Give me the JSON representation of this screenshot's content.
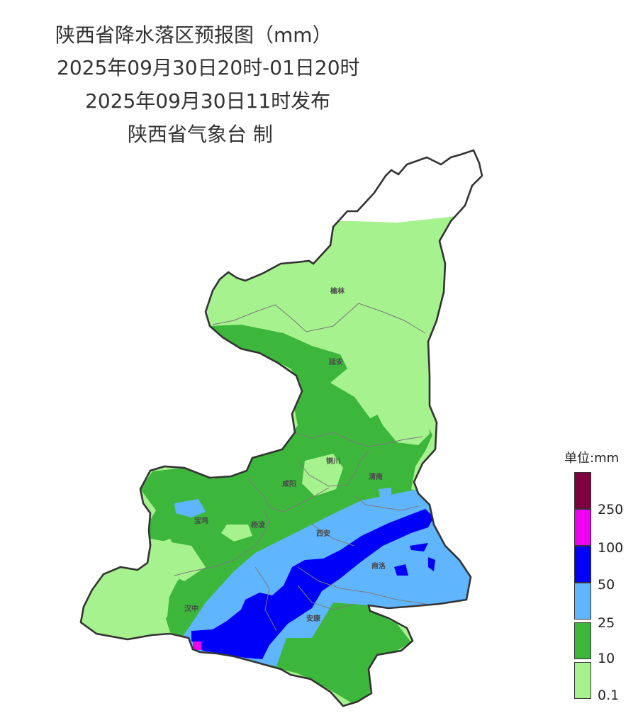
{
  "title": {
    "line1": "陕西省降水落区预报图（mm）",
    "line2": "2025年09月30日20时-01日20时",
    "line3": "2025年09月30日11时发布",
    "line4": "陕西省气象台 制"
  },
  "cities": [
    "榆林",
    "延安",
    "铜川",
    "渭南",
    "咸阳",
    "宝鸡",
    "杨凌",
    "西安",
    "商洛",
    "汉中",
    "安康"
  ],
  "legend": {
    "title": "单位:mm",
    "levels": [
      {
        "label": "",
        "color": "#7f0040"
      },
      {
        "label": "250",
        "color": "#f000f0"
      },
      {
        "label": "100",
        "color": "#0000fa"
      },
      {
        "label": "50",
        "color": "#60b5ff"
      },
      {
        "label": "25",
        "color": "#3cb73c"
      },
      {
        "label": "10",
        "color": "#a6f28e"
      },
      {
        "label": "0.1",
        "color": ""
      }
    ]
  },
  "colors": {
    "light_rain": "#a6f28e",
    "moderate_rain": "#3cb73c",
    "heavy_rain": "#60b5ff",
    "rainstorm": "#0000fa",
    "heavy_rainstorm": "#f000f0",
    "extreme_rainstorm": "#7f0040",
    "border": "#333333"
  }
}
